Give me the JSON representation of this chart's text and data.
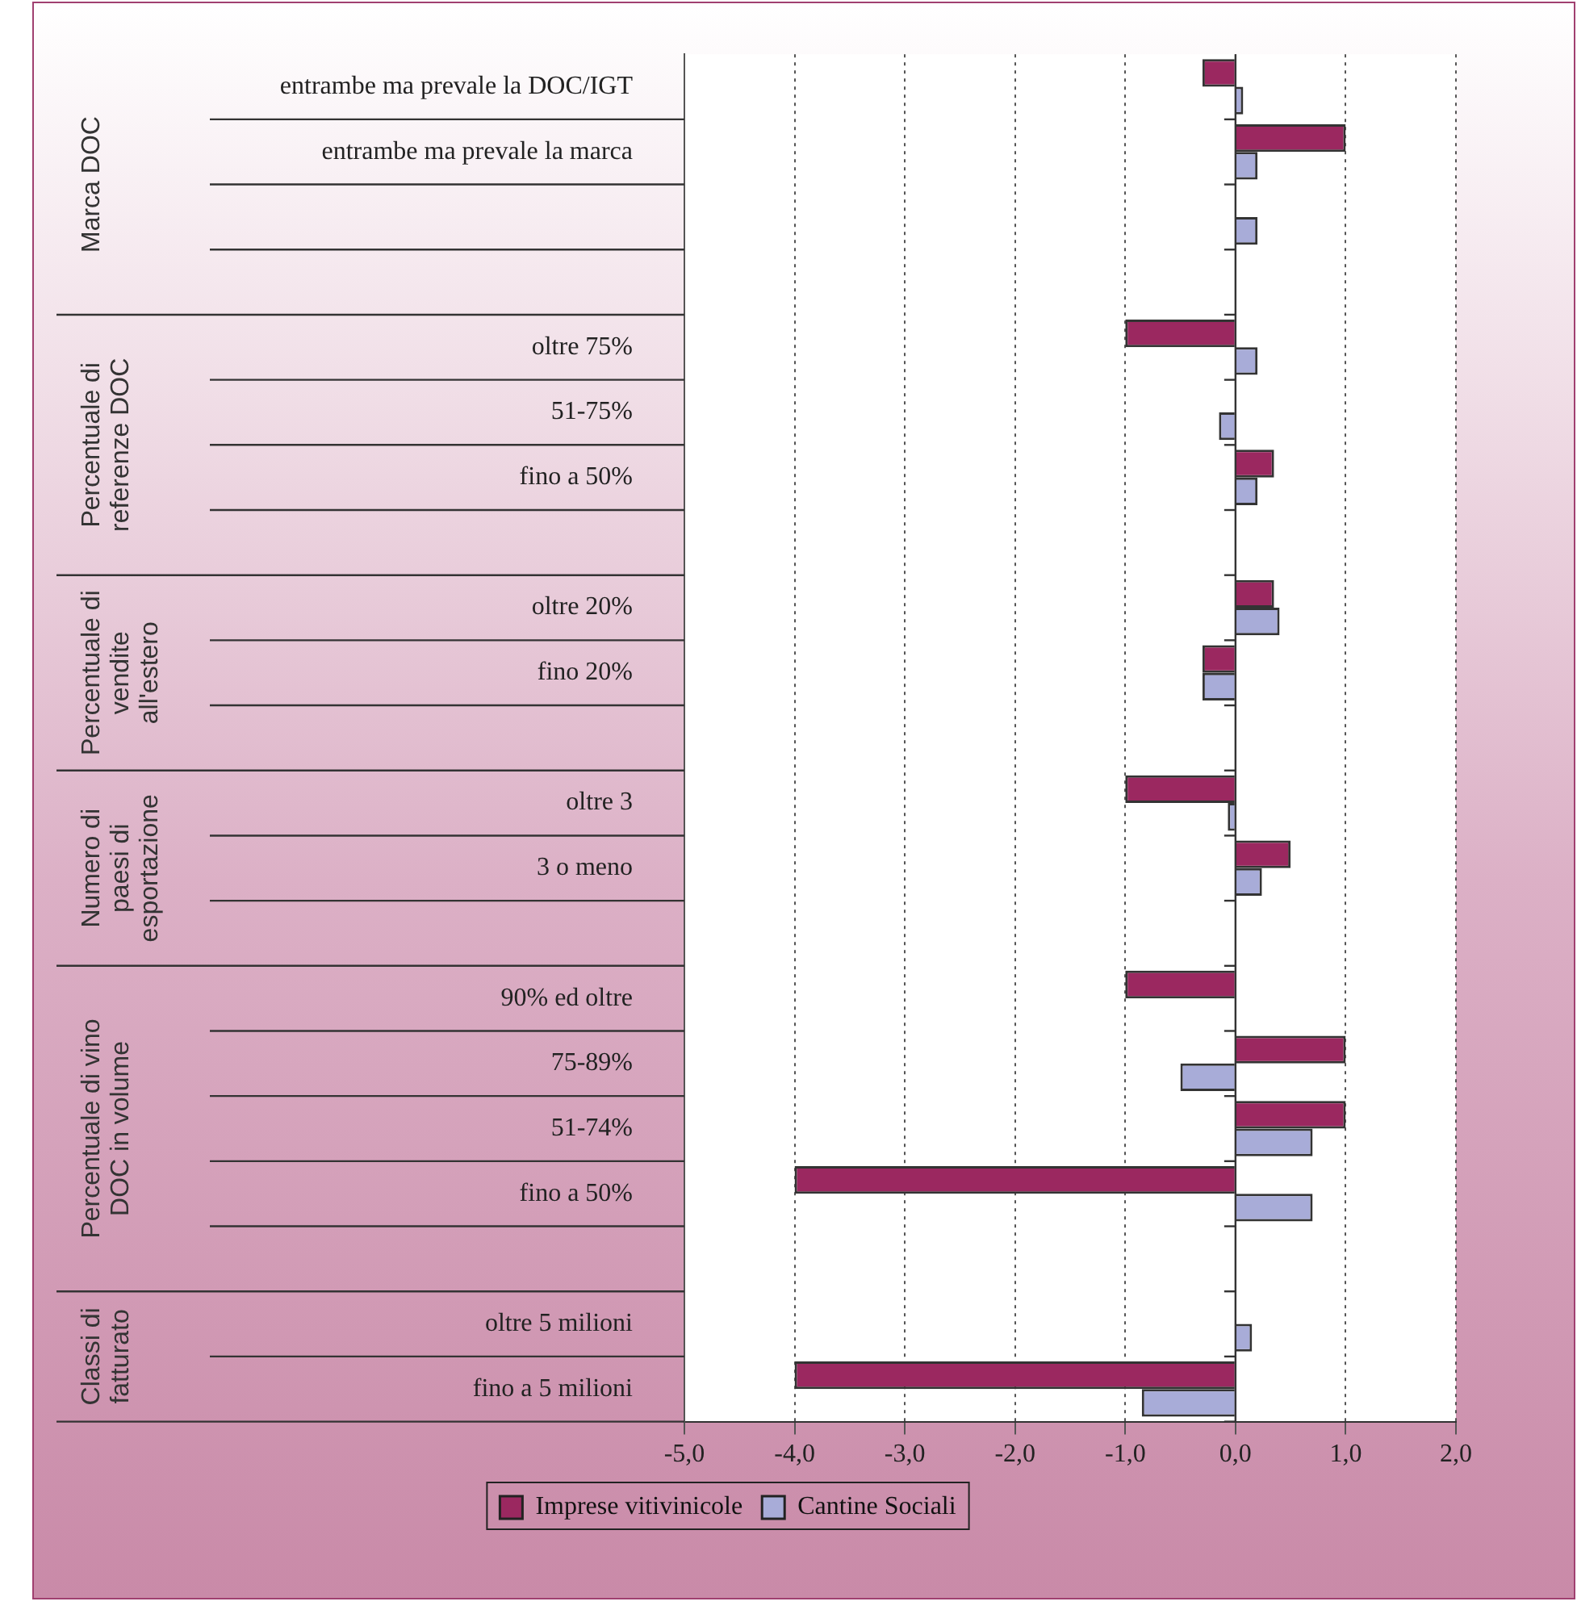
{
  "chart_data": {
    "type": "bar",
    "orientation": "horizontal",
    "categories": [
      "entrambe ma prevale la DOC/IGT",
      "entrambe ma prevale la marca",
      null,
      null,
      "oltre 75%",
      "51-75%",
      "fino a 50%",
      null,
      "oltre 20%",
      "fino 20%",
      null,
      "oltre 3",
      "3 o meno",
      null,
      "90% ed oltre",
      "75-89%",
      "51-74%",
      "fino a 50%",
      null,
      "oltre 5 milioni",
      "fino a 5 milioni"
    ],
    "series": [
      {
        "name": "Imprese vitivinicole",
        "color": "#9b2860",
        "values": [
          -0.3,
          1.0,
          null,
          null,
          -1.0,
          null,
          0.35,
          null,
          0.35,
          -0.3,
          null,
          -1.0,
          0.5,
          null,
          -1.0,
          1.0,
          1.0,
          -4.0,
          null,
          null,
          -4.0
        ]
      },
      {
        "name": "Cantine Sociali",
        "color": "#a8acd8",
        "values": [
          0.07,
          0.2,
          0.2,
          null,
          0.2,
          -0.15,
          0.2,
          null,
          0.4,
          -0.3,
          null,
          -0.07,
          0.24,
          null,
          null,
          -0.5,
          0.7,
          0.7,
          null,
          0.15,
          -0.85
        ]
      }
    ],
    "xlim": [
      -5,
      2
    ],
    "xticks": [
      {
        "value": -5,
        "label": "-5,0"
      },
      {
        "value": -4,
        "label": "-4,0"
      },
      {
        "value": -3,
        "label": "-3,0"
      },
      {
        "value": -2,
        "label": "-2,0"
      },
      {
        "value": -1,
        "label": "-1,0"
      },
      {
        "value": 0,
        "label": "0,0"
      },
      {
        "value": 1,
        "label": "1,0"
      },
      {
        "value": 2,
        "label": "2,0"
      }
    ],
    "grid": "x",
    "legend": "bottom",
    "annotations": [
      "Marca DOC",
      "Percentuale di\nreferenze DOC",
      "Percentuale di\nvendite\nall'estero",
      "Numero di\npaesi di\nesportazione",
      "Percentuale di vino\nDOC in volume",
      "Classi di\nfatturato"
    ]
  }
}
